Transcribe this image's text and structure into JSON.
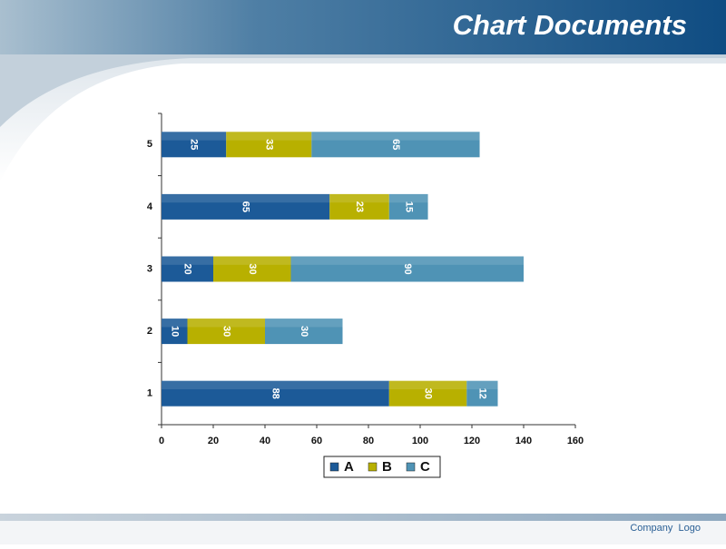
{
  "header": {
    "title": "Chart Documents"
  },
  "footer": {
    "logo": "Company  Logo"
  },
  "chart_data": {
    "type": "stacked-bar-horizontal",
    "categories": [
      "1",
      "2",
      "3",
      "4",
      "5"
    ],
    "series": [
      {
        "name": "A",
        "color": "#1c5a98",
        "values": [
          88,
          10,
          20,
          65,
          25
        ]
      },
      {
        "name": "B",
        "color": "#b8b000",
        "values": [
          30,
          30,
          30,
          23,
          33
        ]
      },
      {
        "name": "C",
        "color": "#4f93b5",
        "values": [
          12,
          30,
          90,
          15,
          65
        ]
      }
    ],
    "xlim": [
      0,
      160
    ],
    "xticks": [
      0,
      20,
      40,
      60,
      80,
      100,
      120,
      140,
      160
    ],
    "legend": "bottom"
  }
}
